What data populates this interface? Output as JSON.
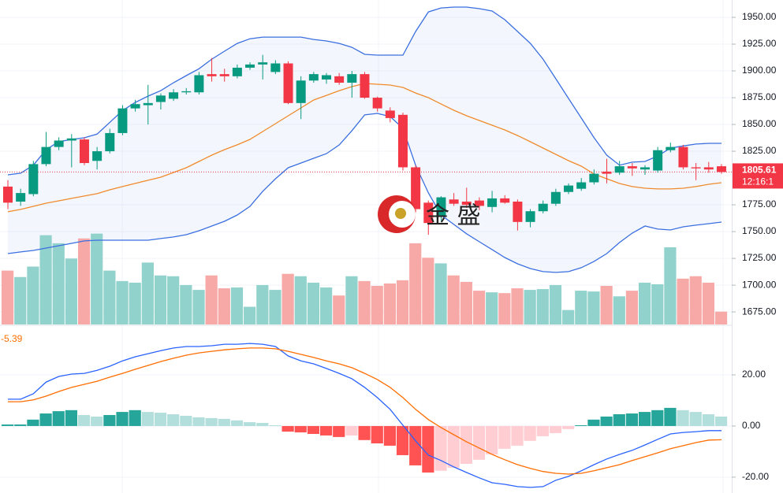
{
  "logo_text": "金 盛",
  "chart_data": [
    {
      "type": "candlestick",
      "open": [
        1792,
        1778,
        1785,
        1813,
        1829,
        1835,
        1836,
        1816,
        1825,
        1842,
        1865,
        1868,
        1871,
        1874,
        1880,
        1880,
        1897,
        1897,
        1895,
        1903,
        1906,
        1899,
        1907,
        1870,
        1891,
        1892,
        1895,
        1889,
        1897,
        1875,
        1863,
        1859,
        1810,
        1777,
        1764,
        1780,
        1778,
        1779,
        1773,
        1781,
        1778,
        1759,
        1769,
        1776,
        1787,
        1790,
        1796,
        1806,
        1805,
        1811,
        1808,
        1807,
        1826,
        1829,
        1810,
        1810,
        1811
      ],
      "high": [
        1798,
        1790,
        1816,
        1843,
        1838,
        1841,
        1838,
        1829,
        1846,
        1868,
        1873,
        1887,
        1879,
        1883,
        1884,
        1899,
        1912,
        1902,
        1906,
        1908,
        1915,
        1910,
        1909,
        1895,
        1899,
        1898,
        1898,
        1900,
        1899,
        1876,
        1866,
        1861,
        1812,
        1779,
        1783,
        1786,
        1791,
        1782,
        1788,
        1784,
        1780,
        1771,
        1779,
        1790,
        1795,
        1800,
        1808,
        1818,
        1816,
        1814,
        1812,
        1829,
        1833,
        1831,
        1814,
        1815,
        1813
      ],
      "low": [
        1771,
        1774,
        1783,
        1811,
        1826,
        1810,
        1812,
        1808,
        1823,
        1840,
        1862,
        1850,
        1864,
        1872,
        1878,
        1878,
        1890,
        1890,
        1893,
        1901,
        1892,
        1897,
        1869,
        1855,
        1889,
        1888,
        1887,
        1875,
        1874,
        1862,
        1852,
        1807,
        1768,
        1747,
        1760,
        1774,
        1772,
        1770,
        1768,
        1776,
        1751,
        1754,
        1767,
        1774,
        1785,
        1788,
        1794,
        1795,
        1803,
        1802,
        1803,
        1805,
        1824,
        1808,
        1798,
        1805,
        1804
      ],
      "close": [
        1777,
        1786,
        1813,
        1829,
        1835,
        1837,
        1814,
        1825,
        1842,
        1865,
        1869,
        1870,
        1877,
        1880,
        1881,
        1896,
        1895,
        1895,
        1903,
        1906,
        1908,
        1907,
        1870,
        1891,
        1897,
        1896,
        1889,
        1897,
        1875,
        1865,
        1856,
        1810,
        1771,
        1758,
        1782,
        1776,
        1775,
        1774,
        1781,
        1777,
        1759,
        1769,
        1776,
        1787,
        1793,
        1796,
        1804,
        1804,
        1811,
        1809,
        1810,
        1826,
        1829,
        1810,
        1809,
        1808,
        1805.61
      ],
      "volume": [
        67,
        59,
        72,
        111,
        101,
        82,
        107,
        113,
        67,
        54,
        52,
        77,
        61,
        60,
        49,
        43,
        61,
        45,
        46,
        22,
        49,
        43,
        63,
        60,
        52,
        46,
        36,
        60,
        54,
        48,
        51,
        55,
        101,
        83,
        76,
        61,
        53,
        42,
        40,
        39,
        45,
        43,
        44,
        49,
        18,
        42,
        41,
        48,
        35,
        42,
        52,
        50,
        96,
        57,
        60,
        52,
        16
      ],
      "bollinger": {
        "upper": [
          1803,
          1804.5,
          1812,
          1826.5,
          1834,
          1836,
          1837.6,
          1841,
          1852,
          1863,
          1870.6,
          1876.5,
          1881.6,
          1889,
          1895.6,
          1902,
          1911,
          1918.4,
          1925.7,
          1930,
          1931.6,
          1931.6,
          1931.6,
          1931.6,
          1929.4,
          1928,
          1925.7,
          1922,
          1915.5,
          1914.7,
          1914.7,
          1914.7,
          1936.8,
          1955.1,
          1958.8,
          1959.6,
          1959.6,
          1958.1,
          1955.9,
          1947.8,
          1936.8,
          1925.7,
          1911,
          1892.7,
          1874.3,
          1856,
          1837.6,
          1821.4,
          1812,
          1814.8,
          1815.5,
          1820.6,
          1828,
          1830,
          1831.7,
          1832.4,
          1832.4
        ],
        "middle": [
          1768.5,
          1770.7,
          1773.6,
          1776.5,
          1778.7,
          1781,
          1783.2,
          1785.4,
          1789,
          1792,
          1795,
          1797.9,
          1800.8,
          1805.2,
          1809.6,
          1815.5,
          1821.4,
          1826.5,
          1831,
          1836.1,
          1843.4,
          1850.8,
          1858.1,
          1865.5,
          1872.8,
          1877.2,
          1881.6,
          1885.3,
          1888.3,
          1887.5,
          1886.8,
          1884.6,
          1879.4,
          1875,
          1869.1,
          1863.3,
          1858.1,
          1853.7,
          1849.3,
          1844.9,
          1839.7,
          1833.9,
          1828,
          1822.1,
          1816.2,
          1811.1,
          1803.7,
          1799.3,
          1794.9,
          1792,
          1790.5,
          1789.8,
          1789.8,
          1790.5,
          1792,
          1794.2,
          1795.6
        ],
        "lower": [
          1729.5,
          1731,
          1732.4,
          1734.6,
          1736.8,
          1739,
          1741.3,
          1742,
          1742,
          1742,
          1742,
          1742,
          1743.5,
          1745,
          1747.1,
          1750.8,
          1755.2,
          1759.6,
          1765.5,
          1773.6,
          1787.6,
          1799.3,
          1809.6,
          1814,
          1818.4,
          1822.8,
          1830.9,
          1844.2,
          1858.9,
          1860.3,
          1857.4,
          1846.4,
          1811.8,
          1786.1,
          1765.5,
          1756.7,
          1747.9,
          1740.5,
          1733.2,
          1725.8,
          1719.9,
          1715.5,
          1712.6,
          1711.9,
          1712.6,
          1716.3,
          1722.2,
          1729.5,
          1739.8,
          1748.6,
          1755.2,
          1752.3,
          1751.5,
          1754.5,
          1756,
          1757.4,
          1758.9
        ]
      },
      "up_color": "#089981",
      "down_color": "#f23645",
      "volume_up_color": "#92d2cc",
      "volume_down_color": "#f7a9a7",
      "band_color": "#3b6fe0",
      "middle_color": "#f08a2c",
      "countdown": "12:16:1",
      "ylim": [
        1663.3,
        1966.2
      ],
      "yticks": [
        {
          "value": 1675,
          "label": "1675.00"
        },
        {
          "value": 1700,
          "label": "1700.00"
        },
        {
          "value": 1725,
          "label": "1725.00"
        },
        {
          "value": 1750,
          "label": "1750.00"
        },
        {
          "value": 1775,
          "label": "1775.00"
        },
        {
          "value": 1825,
          "label": "1825.00"
        },
        {
          "value": 1850,
          "label": "1850.00"
        },
        {
          "value": 1875,
          "label": "1875.00"
        },
        {
          "value": 1900,
          "label": "1900.00"
        },
        {
          "value": 1925,
          "label": "1925.00"
        },
        {
          "value": 1950,
          "label": "1950.00"
        }
      ],
      "grid": true
    },
    {
      "type": "macd",
      "histogram": [
        0.6,
        0.6,
        2.5,
        4.9,
        5.8,
        6.2,
        4.3,
        3.7,
        4.3,
        5.5,
        6.2,
        5.5,
        5.2,
        4.6,
        4,
        3.4,
        3.1,
        2.8,
        2.2,
        1.5,
        1.2,
        0.3,
        -2.2,
        -2.5,
        -3.1,
        -3.7,
        -4.3,
        -3.7,
        -5.5,
        -6.8,
        -7.7,
        -11.4,
        -15.4,
        -18.2,
        -17.5,
        -16.3,
        -14.8,
        -13.2,
        -11.1,
        -8.9,
        -7.7,
        -5.8,
        -4,
        -2.8,
        -1.2,
        0.3,
        2.5,
        3.7,
        4.6,
        4.9,
        5.5,
        6.2,
        7.1,
        6.2,
        5.5,
        4.6,
        3.7
      ],
      "macd": [
        10.5,
        10.5,
        12.6,
        17.2,
        19.4,
        20.3,
        20.6,
        21.8,
        23.4,
        25.5,
        27.1,
        28.3,
        29.5,
        30.5,
        31.1,
        31.1,
        31.4,
        32,
        32,
        32.3,
        32,
        31.1,
        27.4,
        25.5,
        24.3,
        22.5,
        20.6,
        18.5,
        15.1,
        11.1,
        6.5,
        0.3,
        -5.8,
        -11.4,
        -13.5,
        -16,
        -18.2,
        -20.3,
        -22.2,
        -22.8,
        -23.7,
        -24,
        -23.7,
        -21.2,
        -19.7,
        -17.5,
        -15.1,
        -12.9,
        -11.1,
        -9.5,
        -7.4,
        -5.2,
        -3.1,
        -2.5,
        -2.2,
        -1.8,
        -1.8
      ],
      "signal": [
        9.5,
        9.5,
        10.2,
        11.7,
        13.5,
        15.1,
        16.3,
        17.5,
        19.1,
        20.6,
        22.2,
        23.7,
        25.2,
        26.5,
        27.7,
        28.6,
        29.2,
        29.8,
        30.2,
        30.5,
        30.5,
        30.2,
        29.2,
        28,
        26.8,
        25.5,
        24.3,
        22.8,
        20.6,
        18.2,
        15.1,
        11.1,
        6.5,
        2.5,
        -0.6,
        -3.4,
        -6.2,
        -8.6,
        -11.1,
        -13.2,
        -15.1,
        -16.6,
        -17.8,
        -18.5,
        -18.8,
        -18.5,
        -17.5,
        -16.3,
        -15.1,
        -13.5,
        -12,
        -10.5,
        -8.9,
        -7.7,
        -6.5,
        -5.5,
        -5.39
      ],
      "macd_color": "#2962ff",
      "signal_color": "#ff6d00",
      "hist_colors": {
        "up_strong": "#26a69a",
        "up_weak": "#b2dfdb",
        "down_strong": "#ff5252",
        "down_weak": "#ffcdd2"
      },
      "ylim": [
        -26.2,
        39.1
      ],
      "yticks": [
        {
          "value": -20,
          "label": "-20.00"
        },
        {
          "value": 0,
          "label": "0.00"
        },
        {
          "value": 20,
          "label": "20.00"
        }
      ],
      "grid": true
    }
  ]
}
